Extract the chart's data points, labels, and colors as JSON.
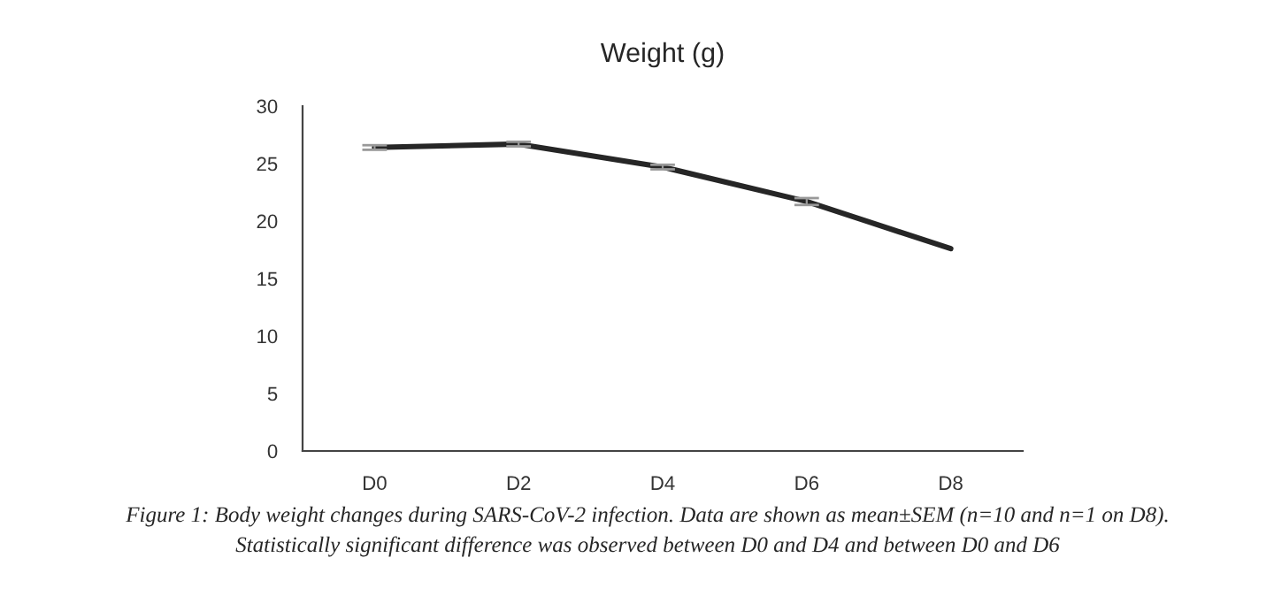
{
  "chart_data": {
    "type": "line",
    "title": "Weight (g)",
    "categories": [
      "D0",
      "D2",
      "D4",
      "D6",
      "D8"
    ],
    "series": [
      {
        "color": "#262626",
        "values": [
          26.4,
          26.7,
          24.7,
          21.7,
          17.6
        ],
        "errors": [
          0.2,
          0.2,
          0.2,
          0.3,
          null
        ]
      }
    ],
    "ylim": [
      0,
      30
    ],
    "yticks": [
      0,
      5,
      10,
      15,
      20,
      25,
      30
    ],
    "grid": false,
    "marker": "none",
    "line_style": "solid",
    "annotations": [
      "Figure 1: Body weight changes during SARS-CoV-2 infection. Data are shown as mean±SEM (n=10 and n=1 on D8).",
      "Statistically significant difference was observed between D0 and D4 and between D0 and D6"
    ]
  }
}
